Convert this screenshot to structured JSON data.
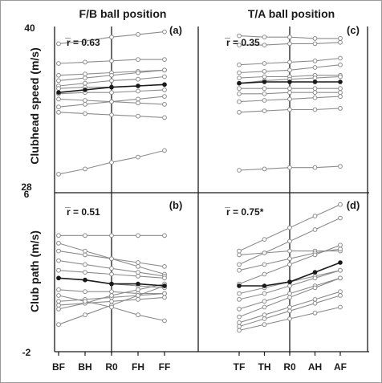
{
  "figure": {
    "col_titles": [
      "F/B ball position",
      "T/A ball position"
    ],
    "ylabels": [
      "Clubhead speed (m/s)",
      "Club path (m/s)"
    ],
    "ytick_labels": {
      "top_max": "40",
      "shared": "28",
      "bottom_max": "6",
      "bottom_min": "-2"
    }
  },
  "chart_data": [
    {
      "type": "line",
      "panel": "(a)",
      "r_label": "r̅ = 0.63",
      "categories": [
        "BF",
        "BH",
        "R0",
        "FH",
        "FF"
      ],
      "ylim": [
        28,
        40
      ],
      "series": [
        {
          "values": [
            39.0,
            39.2,
            39.5,
            39.7,
            39.9
          ]
        },
        {
          "values": [
            37.5,
            37.6,
            37.7,
            37.8,
            37.8
          ]
        },
        {
          "values": [
            36.6,
            36.7,
            36.8,
            36.9,
            37.0
          ]
        },
        {
          "values": [
            36.2,
            36.4,
            36.6,
            36.8,
            37.0
          ]
        },
        {
          "values": [
            35.8,
            36.0,
            36.2,
            36.3,
            36.5
          ]
        },
        {
          "values": [
            35.6,
            35.7,
            35.7,
            35.8,
            35.9
          ]
        },
        {
          "values": [
            35.2,
            35.3,
            35.3,
            35.4,
            35.5
          ]
        },
        {
          "values": [
            34.8,
            34.7,
            34.6,
            34.5,
            34.4
          ]
        },
        {
          "values": [
            34.2,
            34.4,
            34.6,
            34.8,
            35.0
          ]
        },
        {
          "values": [
            33.8,
            33.7,
            33.6,
            33.5,
            33.4
          ]
        },
        {
          "values": [
            29.1,
            29.5,
            30.0,
            30.4,
            30.9
          ]
        }
      ],
      "mean": [
        35.3,
        35.5,
        35.7,
        35.8,
        35.9
      ]
    },
    {
      "type": "line",
      "panel": "(b)",
      "r_label": "r̅ = 0.51",
      "categories": [
        "BF",
        "BH",
        "R0",
        "FH",
        "FF"
      ],
      "ylim": [
        -2,
        6
      ],
      "series": [
        {
          "values": [
            4.0,
            4.0,
            4.0,
            4.0,
            4.0
          ]
        },
        {
          "values": [
            3.6,
            3.2,
            2.8,
            2.4,
            2.0
          ]
        },
        {
          "values": [
            3.2,
            3.0,
            2.8,
            2.6,
            2.4
          ]
        },
        {
          "values": [
            2.7,
            2.5,
            2.3,
            2.1,
            1.9
          ]
        },
        {
          "values": [
            2.2,
            2.1,
            2.0,
            1.9,
            1.8
          ]
        },
        {
          "values": [
            1.8,
            1.7,
            1.5,
            1.4,
            1.3
          ]
        },
        {
          "values": [
            1.2,
            1.1,
            1.1,
            1.0,
            1.0
          ]
        },
        {
          "values": [
            0.6,
            0.7,
            0.8,
            0.9,
            1.0
          ]
        },
        {
          "values": [
            0.4,
            0.5,
            0.6,
            0.7,
            0.8
          ]
        },
        {
          "values": [
            0.2,
            0.5,
            0.9,
            1.2,
            1.5
          ]
        },
        {
          "values": [
            -0.6,
            -0.1,
            0.4,
            0.9,
            1.4
          ]
        },
        {
          "values": [
            0.9,
            0.6,
            0.3,
            -0.1,
            -0.4
          ]
        }
      ],
      "mean": [
        1.8,
        1.7,
        1.5,
        1.5,
        1.4
      ]
    },
    {
      "type": "line",
      "panel": "(c)",
      "r_label": "r̅ = 0.35",
      "categories": [
        "TF",
        "TH",
        "R0",
        "AH",
        "AF"
      ],
      "ylim": [
        28,
        40
      ],
      "series": [
        {
          "values": [
            39.6,
            39.5,
            39.5,
            39.4,
            39.4
          ]
        },
        {
          "values": [
            38.9,
            38.9,
            39.0,
            39.0,
            39.1
          ]
        },
        {
          "values": [
            37.4,
            37.5,
            37.6,
            37.7,
            37.9
          ]
        },
        {
          "values": [
            36.8,
            36.9,
            37.0,
            37.2,
            37.4
          ]
        },
        {
          "values": [
            36.4,
            36.5,
            36.5,
            36.6,
            36.6
          ]
        },
        {
          "values": [
            36.0,
            36.2,
            36.3,
            36.4,
            36.5
          ]
        },
        {
          "values": [
            35.6,
            35.6,
            35.6,
            35.6,
            35.6
          ]
        },
        {
          "values": [
            35.2,
            35.2,
            35.3,
            35.3,
            35.3
          ]
        },
        {
          "values": [
            34.6,
            34.7,
            34.8,
            34.9,
            35.0
          ]
        },
        {
          "values": [
            33.8,
            33.9,
            34.0,
            34.0,
            34.1
          ]
        },
        {
          "values": [
            29.4,
            29.5,
            29.6,
            29.6,
            29.7
          ]
        }
      ],
      "mean": [
        36.0,
        36.1,
        36.1,
        36.1,
        36.1
      ]
    },
    {
      "type": "line",
      "panel": "(d)",
      "r_label": "r̅ = 0.75*",
      "categories": [
        "TF",
        "TH",
        "R0",
        "AH",
        "AF"
      ],
      "ylim": [
        -2,
        6
      ],
      "series": [
        {
          "values": [
            3.2,
            3.8,
            4.4,
            5.0,
            5.6
          ]
        },
        {
          "values": [
            2.5,
            3.1,
            3.7,
            4.3,
            4.9
          ]
        },
        {
          "values": [
            3.0,
            3.1,
            3.2,
            3.2,
            3.2
          ]
        },
        {
          "values": [
            2.2,
            2.5,
            2.8,
            3.1,
            3.3
          ]
        },
        {
          "values": [
            1.5,
            2.0,
            2.5,
            3.0,
            3.5
          ]
        },
        {
          "values": [
            1.0,
            1.3,
            1.6,
            1.9,
            2.2
          ]
        },
        {
          "values": [
            0.7,
            1.0,
            1.4,
            1.8,
            2.2
          ]
        },
        {
          "values": [
            0.2,
            0.6,
            1.0,
            1.4,
            1.8
          ]
        },
        {
          "values": [
            -0.2,
            0.3,
            0.8,
            1.3,
            1.8
          ]
        },
        {
          "values": [
            -0.5,
            -0.1,
            0.3,
            0.7,
            1.1
          ]
        },
        {
          "values": [
            -0.7,
            -0.3,
            0.1,
            0.5,
            0.9
          ]
        },
        {
          "values": [
            -0.9,
            -0.6,
            -0.3,
            0.0,
            0.3
          ]
        }
      ],
      "mean": [
        1.4,
        1.4,
        1.6,
        2.1,
        2.6
      ]
    }
  ],
  "colors": {
    "subject": "#8c8c8c",
    "mean": "#1a1a1a",
    "axis": "#1a1a1a",
    "text": "#1a1a1a"
  }
}
